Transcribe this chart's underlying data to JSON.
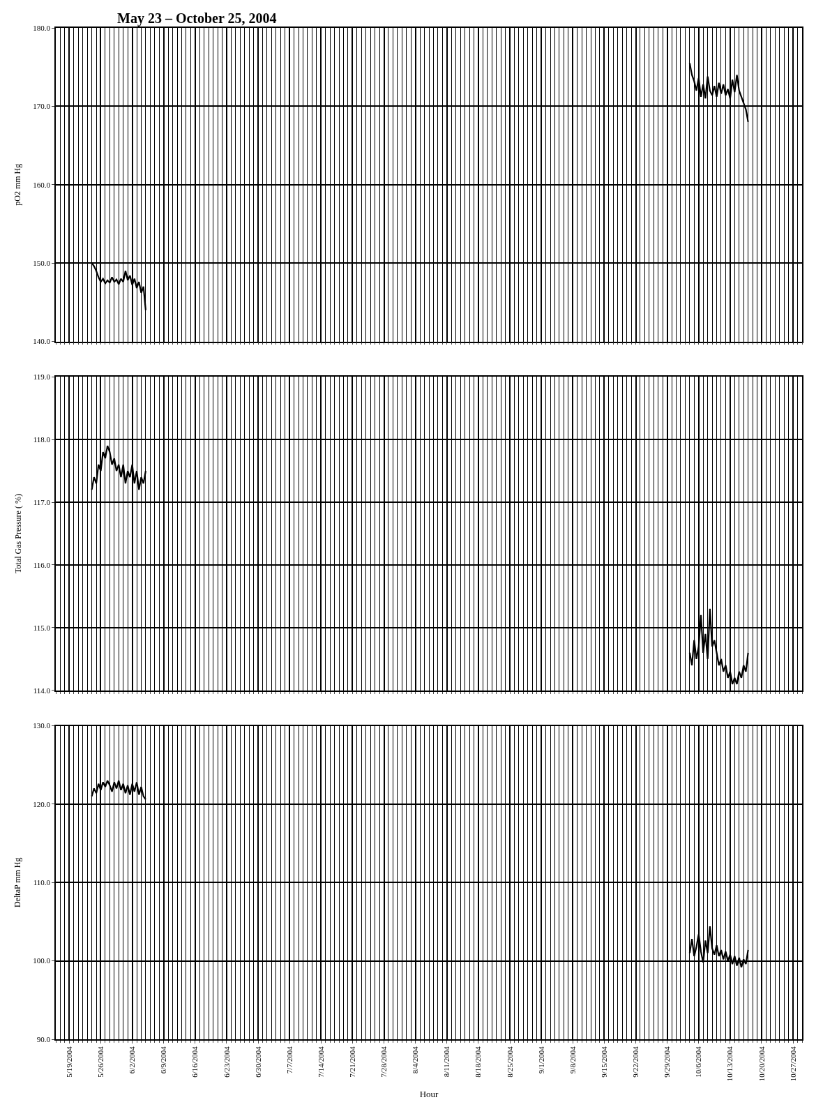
{
  "chart_data": [
    {
      "type": "line",
      "title": "May 23 – October 25, 2004",
      "ylabel": "pO2 mm Hg",
      "grid": true,
      "tick_labels": "y",
      "xlim": [
        "2004-05-16",
        "2004-10-29"
      ],
      "xticks": [
        {
          "value": "2004-05-19",
          "label": null
        },
        {
          "value": "2004-05-26",
          "label": null
        },
        {
          "value": "2004-06-02",
          "label": null
        },
        {
          "value": "2004-06-09",
          "label": null
        },
        {
          "value": "2004-06-16",
          "label": null
        },
        {
          "value": "2004-06-23",
          "label": null
        },
        {
          "value": "2004-06-30",
          "label": null
        },
        {
          "value": "2004-07-07",
          "label": null
        },
        {
          "value": "2004-07-14",
          "label": null
        },
        {
          "value": "2004-07-21",
          "label": null
        },
        {
          "value": "2004-07-28",
          "label": null
        },
        {
          "value": "2004-08-04",
          "label": null
        },
        {
          "value": "2004-08-11",
          "label": null
        },
        {
          "value": "2004-08-18",
          "label": null
        },
        {
          "value": "2004-08-25",
          "label": null
        },
        {
          "value": "2004-09-01",
          "label": null
        },
        {
          "value": "2004-09-08",
          "label": null
        },
        {
          "value": "2004-09-15",
          "label": null
        },
        {
          "value": "2004-09-22",
          "label": null
        },
        {
          "value": "2004-09-29",
          "label": null
        },
        {
          "value": "2004-10-06",
          "label": null
        },
        {
          "value": "2004-10-13",
          "label": null
        },
        {
          "value": "2004-10-20",
          "label": null
        },
        {
          "value": "2004-10-27",
          "label": null
        }
      ],
      "ylim": [
        140,
        180
      ],
      "yticks": [
        {
          "value": 140,
          "label": "140.0"
        },
        {
          "value": 150,
          "label": "150.0"
        },
        {
          "value": 160,
          "label": "160.0"
        },
        {
          "value": 170,
          "label": "170.0"
        },
        {
          "value": 180,
          "label": "180.0"
        }
      ],
      "series": [
        {
          "color": "#000000",
          "x": [
            "2004-05-24T00:00",
            "2004-05-24T12:00",
            "2004-05-25T00:00",
            "2004-05-25T12:00",
            "2004-05-26T00:00",
            "2004-05-26T12:00",
            "2004-05-27T00:00",
            "2004-05-27T12:00",
            "2004-05-28T00:00",
            "2004-05-28T12:00",
            "2004-05-29T00:00",
            "2004-05-29T12:00",
            "2004-05-30T00:00",
            "2004-05-30T12:00",
            "2004-05-31T00:00",
            "2004-05-31T12:00",
            "2004-06-01T00:00",
            "2004-06-01T12:00",
            "2004-06-02T00:00",
            "2004-06-02T12:00",
            "2004-06-03T00:00",
            "2004-06-03T12:00",
            "2004-06-04T00:00",
            "2004-06-04T12:00",
            "2004-06-05T00:00"
          ],
          "values": [
            150.0,
            149.6,
            149.0,
            148.2,
            147.6,
            148.0,
            147.4,
            147.8,
            147.5,
            148.2,
            147.6,
            147.9,
            147.3,
            148.0,
            147.6,
            149.0,
            147.8,
            148.4,
            147.2,
            148.0,
            146.8,
            147.6,
            146.2,
            147.0,
            144.0
          ]
        },
        {
          "color": "#000000",
          "x": [
            "2004-10-04T00:00",
            "2004-10-04T12:00",
            "2004-10-05T00:00",
            "2004-10-05T12:00",
            "2004-10-06T00:00",
            "2004-10-06T12:00",
            "2004-10-07T00:00",
            "2004-10-07T12:00",
            "2004-10-08T00:00",
            "2004-10-08T12:00",
            "2004-10-09T00:00",
            "2004-10-09T12:00",
            "2004-10-10T00:00",
            "2004-10-10T12:00",
            "2004-10-11T00:00",
            "2004-10-11T12:00",
            "2004-10-12T00:00",
            "2004-10-12T12:00",
            "2004-10-13T00:00",
            "2004-10-13T12:00",
            "2004-10-14T00:00",
            "2004-10-14T12:00",
            "2004-10-15T00:00",
            "2004-10-15T12:00",
            "2004-10-16T00:00",
            "2004-10-16T12:00",
            "2004-10-17T00:00"
          ],
          "values": [
            175.5,
            174.0,
            173.2,
            172.0,
            173.6,
            171.2,
            172.8,
            171.0,
            173.8,
            172.0,
            171.4,
            172.6,
            171.2,
            173.0,
            171.6,
            172.8,
            171.4,
            172.2,
            171.0,
            173.4,
            171.8,
            174.0,
            172.0,
            171.2,
            170.4,
            169.6,
            168.0
          ]
        }
      ]
    },
    {
      "type": "line",
      "ylabel": "Total Gas Pressure ( %)",
      "grid": true,
      "tick_labels": "y",
      "xlim": [
        "2004-05-16",
        "2004-10-29"
      ],
      "xticks": [
        {
          "value": "2004-05-19",
          "label": null
        },
        {
          "value": "2004-05-26",
          "label": null
        },
        {
          "value": "2004-06-02",
          "label": null
        },
        {
          "value": "2004-06-09",
          "label": null
        },
        {
          "value": "2004-06-16",
          "label": null
        },
        {
          "value": "2004-06-23",
          "label": null
        },
        {
          "value": "2004-06-30",
          "label": null
        },
        {
          "value": "2004-07-07",
          "label": null
        },
        {
          "value": "2004-07-14",
          "label": null
        },
        {
          "value": "2004-07-21",
          "label": null
        },
        {
          "value": "2004-07-28",
          "label": null
        },
        {
          "value": "2004-08-04",
          "label": null
        },
        {
          "value": "2004-08-11",
          "label": null
        },
        {
          "value": "2004-08-18",
          "label": null
        },
        {
          "value": "2004-08-25",
          "label": null
        },
        {
          "value": "2004-09-01",
          "label": null
        },
        {
          "value": "2004-09-08",
          "label": null
        },
        {
          "value": "2004-09-15",
          "label": null
        },
        {
          "value": "2004-09-22",
          "label": null
        },
        {
          "value": "2004-09-29",
          "label": null
        },
        {
          "value": "2004-10-06",
          "label": null
        },
        {
          "value": "2004-10-13",
          "label": null
        },
        {
          "value": "2004-10-20",
          "label": null
        },
        {
          "value": "2004-10-27",
          "label": null
        }
      ],
      "ylim": [
        114,
        119
      ],
      "yticks": [
        {
          "value": 114,
          "label": "114.0"
        },
        {
          "value": 115,
          "label": "115.0"
        },
        {
          "value": 116,
          "label": "116.0"
        },
        {
          "value": 117,
          "label": "117.0"
        },
        {
          "value": 118,
          "label": "118.0"
        },
        {
          "value": 119,
          "label": "119.0"
        }
      ],
      "series": [
        {
          "color": "#000000",
          "x": [
            "2004-05-24T00:00",
            "2004-05-24T12:00",
            "2004-05-25T00:00",
            "2004-05-25T12:00",
            "2004-05-26T00:00",
            "2004-05-26T12:00",
            "2004-05-27T00:00",
            "2004-05-27T12:00",
            "2004-05-28T00:00",
            "2004-05-28T12:00",
            "2004-05-29T00:00",
            "2004-05-29T12:00",
            "2004-05-30T00:00",
            "2004-05-30T12:00",
            "2004-05-31T00:00",
            "2004-05-31T12:00",
            "2004-06-01T00:00",
            "2004-06-01T12:00",
            "2004-06-02T00:00",
            "2004-06-02T12:00",
            "2004-06-03T00:00",
            "2004-06-03T12:00",
            "2004-06-04T00:00",
            "2004-06-04T12:00",
            "2004-06-05T00:00"
          ],
          "values": [
            117.2,
            117.4,
            117.3,
            117.6,
            117.5,
            117.8,
            117.7,
            117.9,
            117.8,
            117.6,
            117.7,
            117.5,
            117.6,
            117.4,
            117.6,
            117.3,
            117.5,
            117.4,
            117.6,
            117.3,
            117.5,
            117.2,
            117.4,
            117.3,
            117.5
          ]
        },
        {
          "color": "#000000",
          "x": [
            "2004-10-04T00:00",
            "2004-10-04T12:00",
            "2004-10-05T00:00",
            "2004-10-05T12:00",
            "2004-10-06T00:00",
            "2004-10-06T12:00",
            "2004-10-07T00:00",
            "2004-10-07T12:00",
            "2004-10-08T00:00",
            "2004-10-08T12:00",
            "2004-10-09T00:00",
            "2004-10-09T12:00",
            "2004-10-10T00:00",
            "2004-10-10T12:00",
            "2004-10-11T00:00",
            "2004-10-11T12:00",
            "2004-10-12T00:00",
            "2004-10-12T12:00",
            "2004-10-13T00:00",
            "2004-10-13T12:00",
            "2004-10-14T00:00",
            "2004-10-14T12:00",
            "2004-10-15T00:00",
            "2004-10-15T12:00",
            "2004-10-16T00:00",
            "2004-10-16T12:00",
            "2004-10-17T00:00"
          ],
          "values": [
            114.6,
            114.4,
            114.8,
            114.5,
            114.7,
            115.2,
            114.6,
            114.9,
            114.5,
            115.3,
            114.7,
            114.8,
            114.6,
            114.4,
            114.5,
            114.3,
            114.4,
            114.2,
            114.3,
            114.1,
            114.2,
            114.1,
            114.3,
            114.2,
            114.4,
            114.3,
            114.6
          ]
        }
      ]
    },
    {
      "type": "line",
      "ylabel": "DeltaP mm Hg",
      "xlabel": "Hour",
      "grid": true,
      "xlim": [
        "2004-05-16",
        "2004-10-29"
      ],
      "xticks": [
        {
          "value": "2004-05-19",
          "label": "5/19/2004"
        },
        {
          "value": "2004-05-26",
          "label": "5/26/2004"
        },
        {
          "value": "2004-06-02",
          "label": "6/2/2004"
        },
        {
          "value": "2004-06-09",
          "label": "6/9/2004"
        },
        {
          "value": "2004-06-16",
          "label": "6/16/2004"
        },
        {
          "value": "2004-06-23",
          "label": "6/23/2004"
        },
        {
          "value": "2004-06-30",
          "label": "6/30/2004"
        },
        {
          "value": "2004-07-07",
          "label": "7/7/2004"
        },
        {
          "value": "2004-07-14",
          "label": "7/14/2004"
        },
        {
          "value": "2004-07-21",
          "label": "7/21/2004"
        },
        {
          "value": "2004-07-28",
          "label": "7/28/2004"
        },
        {
          "value": "2004-08-04",
          "label": "8/4/2004"
        },
        {
          "value": "2004-08-11",
          "label": "8/11/2004"
        },
        {
          "value": "2004-08-18",
          "label": "8/18/2004"
        },
        {
          "value": "2004-08-25",
          "label": "8/25/2004"
        },
        {
          "value": "2004-09-01",
          "label": "9/1/2004"
        },
        {
          "value": "2004-09-08",
          "label": "9/8/2004"
        },
        {
          "value": "2004-09-15",
          "label": "9/15/2004"
        },
        {
          "value": "2004-09-22",
          "label": "9/22/2004"
        },
        {
          "value": "2004-09-29",
          "label": "9/29/2004"
        },
        {
          "value": "2004-10-06",
          "label": "10/6/2004"
        },
        {
          "value": "2004-10-13",
          "label": "10/13/2004"
        },
        {
          "value": "2004-10-20",
          "label": "10/20/2004"
        },
        {
          "value": "2004-10-27",
          "label": "10/27/2004"
        }
      ],
      "ylim": [
        90,
        130
      ],
      "yticks": [
        {
          "value": 90,
          "label": "90.0"
        },
        {
          "value": 100,
          "label": "100.0"
        },
        {
          "value": 110,
          "label": "110.0"
        },
        {
          "value": 120,
          "label": "120.0"
        },
        {
          "value": 130,
          "label": "130.0"
        }
      ],
      "series": [
        {
          "color": "#000000",
          "x": [
            "2004-05-24T00:00",
            "2004-05-24T12:00",
            "2004-05-25T00:00",
            "2004-05-25T12:00",
            "2004-05-26T00:00",
            "2004-05-26T12:00",
            "2004-05-27T00:00",
            "2004-05-27T12:00",
            "2004-05-28T00:00",
            "2004-05-28T12:00",
            "2004-05-29T00:00",
            "2004-05-29T12:00",
            "2004-05-30T00:00",
            "2004-05-30T12:00",
            "2004-05-31T00:00",
            "2004-05-31T12:00",
            "2004-06-01T00:00",
            "2004-06-01T12:00",
            "2004-06-02T00:00",
            "2004-06-02T12:00",
            "2004-06-03T00:00",
            "2004-06-03T12:00",
            "2004-06-04T00:00",
            "2004-06-04T12:00",
            "2004-06-05T00:00"
          ],
          "values": [
            121.0,
            122.0,
            121.4,
            122.6,
            121.8,
            122.8,
            122.2,
            123.0,
            122.4,
            121.6,
            122.8,
            122.0,
            123.0,
            121.8,
            122.6,
            121.4,
            122.4,
            121.2,
            122.6,
            121.6,
            122.8,
            121.2,
            122.2,
            121.0,
            120.6
          ]
        },
        {
          "color": "#000000",
          "x": [
            "2004-10-04T00:00",
            "2004-10-04T12:00",
            "2004-10-05T00:00",
            "2004-10-05T12:00",
            "2004-10-06T00:00",
            "2004-10-06T12:00",
            "2004-10-07T00:00",
            "2004-10-07T12:00",
            "2004-10-08T00:00",
            "2004-10-08T12:00",
            "2004-10-09T00:00",
            "2004-10-09T12:00",
            "2004-10-10T00:00",
            "2004-10-10T12:00",
            "2004-10-11T00:00",
            "2004-10-11T12:00",
            "2004-10-12T00:00",
            "2004-10-12T12:00",
            "2004-10-13T00:00",
            "2004-10-13T12:00",
            "2004-10-14T00:00",
            "2004-10-14T12:00",
            "2004-10-15T00:00",
            "2004-10-15T12:00",
            "2004-10-16T00:00",
            "2004-10-16T12:00",
            "2004-10-17T00:00"
          ],
          "values": [
            101.0,
            102.8,
            100.6,
            101.8,
            103.4,
            101.2,
            99.8,
            102.6,
            101.0,
            104.4,
            101.6,
            100.8,
            102.0,
            100.6,
            101.4,
            100.2,
            101.2,
            100.0,
            100.8,
            99.6,
            100.6,
            99.4,
            100.4,
            99.2,
            100.2,
            99.6,
            101.4
          ]
        }
      ]
    }
  ]
}
